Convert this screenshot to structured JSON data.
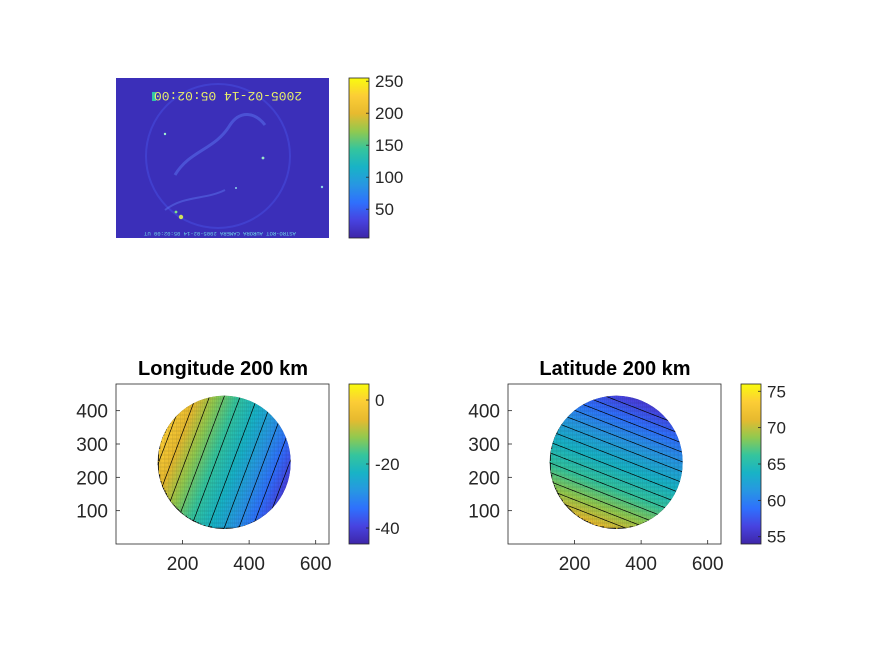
{
  "colors": {
    "colormap": [
      "#3e26a8",
      "#4743e0",
      "#2f70fd",
      "#2797e2",
      "#18b3c6",
      "#35c59d",
      "#91c94f",
      "#e7ba2f",
      "#fccd36",
      "#f9fb0e"
    ],
    "image_background": "#3b2fb9",
    "contour_line": "#000000",
    "axes": "#262626"
  },
  "chart_data": [
    {
      "type": "heatmap",
      "title": "",
      "image_text": "2005-02-14 05:02:00",
      "bottom_caption": "ASTRO-ROT AURORA CAMERA 2005-02-14 05:02:00 UT",
      "axes_visible": false,
      "colorbar": {
        "ticks": [
          50,
          100,
          150,
          200,
          250
        ],
        "clim": [
          5,
          255
        ]
      }
    },
    {
      "type": "heatmap",
      "title": "Longitude 200 km",
      "xticks": [
        200,
        400,
        600
      ],
      "yticks": [
        100,
        200,
        300,
        400
      ],
      "xlim": [
        0,
        640
      ],
      "ylim": [
        0,
        480
      ],
      "disk": {
        "cx": 325,
        "cy": 245,
        "r": 200
      },
      "contour_levels": [
        -42,
        -38,
        -34,
        -30,
        -26,
        -22,
        -18,
        -14,
        -10,
        -6,
        -2
      ],
      "colorbar": {
        "ticks": [
          0,
          -20,
          -40
        ],
        "clim": [
          -45,
          5
        ]
      }
    },
    {
      "type": "heatmap",
      "title": "Latitude 200 km",
      "xticks": [
        200,
        400,
        600
      ],
      "yticks": [
        100,
        200,
        300,
        400
      ],
      "xlim": [
        0,
        640
      ],
      "ylim": [
        0,
        480
      ],
      "disk": {
        "cx": 325,
        "cy": 245,
        "r": 200
      },
      "contour_levels": [
        57,
        58,
        59,
        60,
        61,
        62,
        63,
        64,
        65,
        66,
        67,
        68,
        69,
        70
      ],
      "colorbar": {
        "ticks": [
          55,
          60,
          65,
          70,
          75
        ],
        "clim": [
          54,
          76
        ]
      }
    }
  ]
}
